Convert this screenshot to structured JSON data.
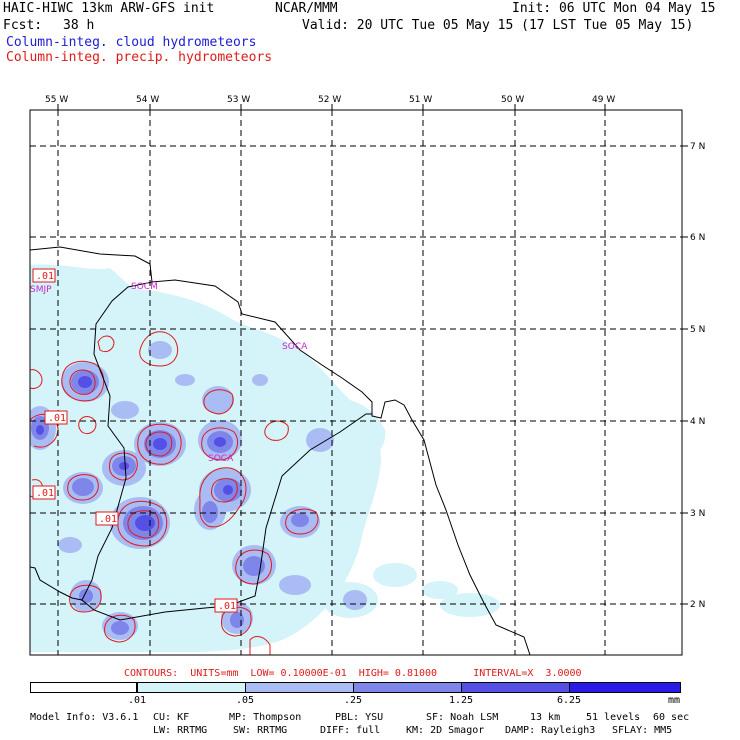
{
  "header": {
    "model_title": "HAIC-HIWC 13km ARW-GFS init",
    "org": "NCAR/MMM",
    "init": "Init: 06 UTC Mon 04 May 15",
    "fcst_label": "Fcst:",
    "fcst_value": "38 h",
    "valid": "Valid: 20 UTC Tue 05 May 15 (17 LST Tue 05 May 15)",
    "field1": "Column-integ. cloud hydrometeors",
    "field2": "Column-integ. precip. hydrometeors"
  },
  "colors": {
    "field1": "#1c1cd4",
    "field2": "#e01a1a",
    "shade_levels": [
      "#ffffff",
      "#d4f4fa",
      "#aabcf4",
      "#7f86ea",
      "#5450e6",
      "#2a1ae8"
    ]
  },
  "map": {
    "lon_labels": [
      "55 W",
      "54 W",
      "53 W",
      "52 W",
      "51 W",
      "50 W",
      "49 W"
    ],
    "lat_labels": [
      "7 N",
      "6 N",
      "5 N",
      "4 N",
      "3 N",
      "2 N"
    ],
    "station_labels": [
      "SMJP",
      "SOCM",
      "SOCA",
      "SOCA"
    ],
    "contour_labels": [
      ".01",
      ".01",
      ".01",
      ".01",
      ".01"
    ]
  },
  "contour_info": {
    "text": "CONTOURS:  UNITS=mm  LOW= 0.10000E-01  HIGH= 0.81000      INTERVAL=X  3.0000"
  },
  "colorbar": {
    "tick_labels": [
      ".01",
      ".05",
      ".25",
      "1.25",
      "6.25"
    ],
    "units": "mm"
  },
  "model_info": {
    "line1": [
      "Model Info: V3.6.1",
      "CU: KF",
      "MP: Thompson",
      "PBL: YSU",
      "SF: Noah LSM",
      "13 km",
      "51 levels",
      "60 sec"
    ],
    "line2": [
      "LW: RRTMG",
      "SW: RRTMG",
      "DIFF: full",
      "KM: 2D Smagor",
      "DAMP: Rayleigh3",
      "SFLAY: MM5"
    ]
  }
}
